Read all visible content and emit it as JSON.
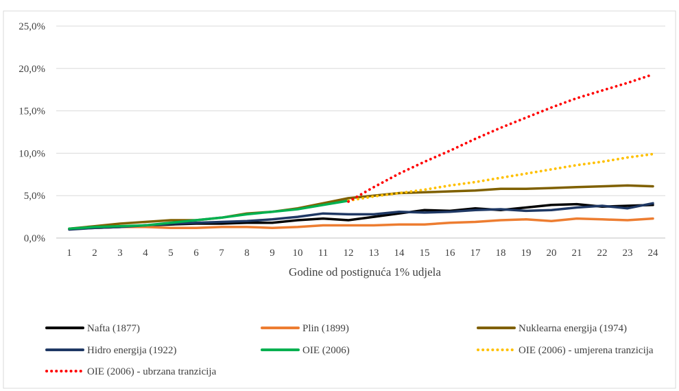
{
  "chart_data": {
    "type": "line",
    "xlabel": "Godine od postignuća 1% udjela",
    "ylabel": "",
    "x": [
      1,
      2,
      3,
      4,
      5,
      6,
      7,
      8,
      9,
      10,
      11,
      12,
      13,
      14,
      15,
      16,
      17,
      18,
      19,
      20,
      21,
      22,
      23,
      24
    ],
    "ylim": [
      0,
      25
    ],
    "yticks": [
      0,
      5,
      10,
      15,
      20,
      25
    ],
    "ytick_labels": [
      "0,0%",
      "5,0%",
      "10,0%",
      "15,0%",
      "20,0%",
      "25,0%"
    ],
    "grid": true,
    "legend_position": "bottom",
    "series": [
      {
        "name": "Nafta (1877)",
        "color": "#000000",
        "style": "solid",
        "x": [
          1,
          2,
          3,
          4,
          5,
          6,
          7,
          8,
          9,
          10,
          11,
          12,
          13,
          14,
          15,
          16,
          17,
          18,
          19,
          20,
          21,
          22,
          23,
          24
        ],
        "values": [
          1.1,
          1.2,
          1.3,
          1.5,
          1.6,
          1.7,
          1.7,
          1.8,
          1.8,
          2.1,
          2.3,
          2.1,
          2.5,
          2.9,
          3.3,
          3.2,
          3.5,
          3.3,
          3.6,
          3.9,
          4.0,
          3.7,
          3.8,
          3.9
        ]
      },
      {
        "name": "Plin (1899)",
        "color": "#ed7d31",
        "style": "solid",
        "x": [
          1,
          2,
          3,
          4,
          5,
          6,
          7,
          8,
          9,
          10,
          11,
          12,
          13,
          14,
          15,
          16,
          17,
          18,
          19,
          20,
          21,
          22,
          23,
          24
        ],
        "values": [
          1.1,
          1.2,
          1.3,
          1.3,
          1.2,
          1.2,
          1.3,
          1.3,
          1.2,
          1.3,
          1.5,
          1.5,
          1.5,
          1.6,
          1.6,
          1.8,
          1.9,
          2.1,
          2.2,
          2.0,
          2.3,
          2.2,
          2.1,
          2.3
        ]
      },
      {
        "name": "Nuklearna energija (1974)",
        "color": "#7f6000",
        "style": "solid",
        "x": [
          1,
          2,
          3,
          4,
          5,
          6,
          7,
          8,
          9,
          10,
          11,
          12,
          13,
          14,
          15,
          16,
          17,
          18,
          19,
          20,
          21,
          22,
          23,
          24
        ],
        "values": [
          1.1,
          1.4,
          1.7,
          1.9,
          2.1,
          2.1,
          2.4,
          2.9,
          3.1,
          3.5,
          4.1,
          4.7,
          5.0,
          5.3,
          5.4,
          5.5,
          5.6,
          5.8,
          5.8,
          5.9,
          6.0,
          6.1,
          6.2,
          6.1
        ]
      },
      {
        "name": "Hidro energija (1922)",
        "color": "#1f3864",
        "style": "solid",
        "x": [
          1,
          2,
          3,
          4,
          5,
          6,
          7,
          8,
          9,
          10,
          11,
          12,
          13,
          14,
          15,
          16,
          17,
          18,
          19,
          20,
          21,
          22,
          23,
          24
        ],
        "values": [
          1.0,
          1.2,
          1.3,
          1.5,
          1.7,
          1.8,
          1.9,
          2.0,
          2.2,
          2.5,
          2.9,
          2.8,
          2.8,
          3.1,
          3.0,
          3.1,
          3.3,
          3.4,
          3.2,
          3.3,
          3.6,
          3.8,
          3.5,
          4.1
        ]
      },
      {
        "name": "OIE (2006)",
        "color": "#00b050",
        "style": "solid",
        "x": [
          1,
          2,
          3,
          4,
          5,
          6,
          7,
          8,
          9,
          10,
          11,
          12
        ],
        "values": [
          1.1,
          1.3,
          1.4,
          1.5,
          1.8,
          2.1,
          2.4,
          2.8,
          3.1,
          3.4,
          3.9,
          4.4
        ]
      },
      {
        "name": "OIE (2006) - umjerena tranzicija",
        "color": "#ffc000",
        "style": "dotted",
        "x": [
          12,
          13,
          14,
          15,
          16,
          17,
          18,
          19,
          20,
          21,
          22,
          23,
          24
        ],
        "values": [
          4.4,
          4.9,
          5.3,
          5.7,
          6.2,
          6.6,
          7.1,
          7.6,
          8.1,
          8.6,
          9.0,
          9.5,
          9.9
        ]
      },
      {
        "name": "OIE (2006) - ubrzana tranzicija",
        "color": "#ff0000",
        "style": "dotted",
        "x": [
          12,
          13,
          14,
          15,
          16,
          17,
          18,
          19,
          20,
          21,
          22,
          23,
          24
        ],
        "values": [
          4.3,
          6.0,
          7.6,
          9.0,
          10.3,
          11.7,
          13.0,
          14.2,
          15.4,
          16.5,
          17.4,
          18.3,
          19.3
        ]
      }
    ]
  }
}
